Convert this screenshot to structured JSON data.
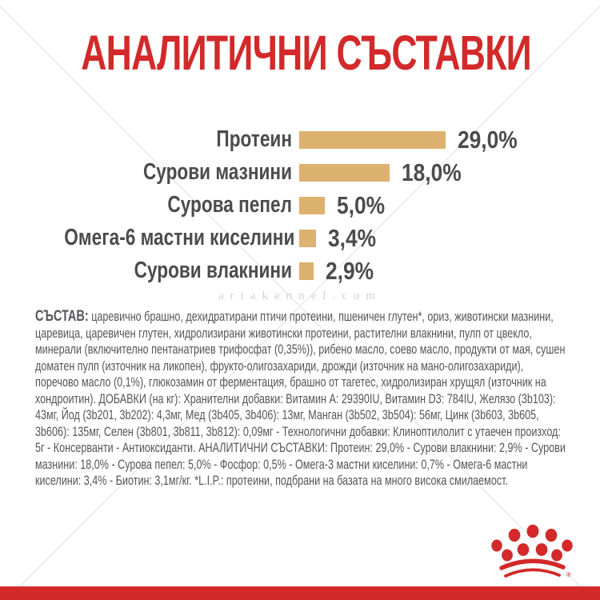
{
  "page": {
    "title": "АНАЛИТИЧНИ СЪСТАВКИ",
    "watermark": "ariakennel.com",
    "brand_logo": "royal-canin-crown",
    "registered_mark": "®"
  },
  "colors": {
    "accent_red": "#d3292a",
    "bar_tan": "#ddb16e",
    "label_gray": "#4c4c4e",
    "body_gray": "#565659",
    "watermark_gray": "#d2d2d2",
    "line_gray": "#e9e9e9"
  },
  "chart_data": {
    "type": "bar",
    "orientation": "horizontal",
    "unit": "%",
    "title": "АНАЛИТИЧНИ СЪСТАВКИ",
    "categories": [
      "Протеин",
      "Сурови мазнини",
      "Сурова пепел",
      "Омега-6 мастни киселини",
      "Сурови влакнини"
    ],
    "values": [
      29.0,
      18.0,
      5.0,
      3.4,
      2.9
    ],
    "value_labels": [
      "29,0%",
      "18,0%",
      "5,0%",
      "3,4%",
      "2,9%"
    ],
    "xlim": [
      0,
      30
    ],
    "grid": false,
    "legend": false,
    "bar_color": "#ddb16e"
  },
  "composition": {
    "lead": "СЪСТАВ:",
    "body": "царевично брашно, дехидратирани птичи протеини, пшеничен глутен*, ориз, животински мазнини, царевица, царевичен глутен, хидролизирани животински протеини, растителни влакнини, пулп от цвекло, минерали (включително пентанатриев трифосфат (0,35%)), рибено масло, соево масло, продукти от мая, сушен доматен пулп (източник на ликопен), фрукто-олигозахариди, дрожди (източник на мано-олигозахариди), поречово масло (0,1%), глюкозамин от ферментация, брашно от тагетес, хидролизиран хрущял (източник на хондроитин). ДОБАВКИ (на кг): Хранителни добавки: Витамин A: 29390IU, Витамин D3: 784IU, Желязо (3b103): 43мг, Йод (3b201, 3b202): 4,3мг, Мед (3b405, 3b406): 13мг, Манган (3b502, 3b504): 56мг, Цинк (3b603, 3b605, 3b606): 135мг, Селен (3b801, 3b811, 3b812): 0,09мг - Технологични добавки: Клиноптилолит с утаечен произход: 5г - Консерванти - Антиоксиданти. АНАЛИТИЧНИ СЪСТАВКИ: Протеин: 29,0% - Сурови влакнини: 2,9% - Сурови мазнини: 18,0% - Сурова пепел: 5,0% - Фосфор: 0,5% - Омега-3 мастни киселини: 0,7% - Омега-6 мастни киселини: 3,4% - Биотин: 3,1мг/кг. *L.I.P.: протеини, подбрани на базата на много висока смилаемост."
  }
}
